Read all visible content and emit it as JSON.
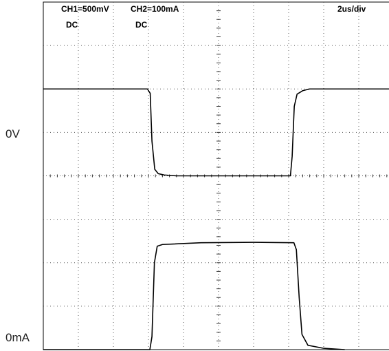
{
  "chart_data": {
    "type": "line",
    "ch1": {
      "label": "CH1=500mV",
      "coupling": "DC",
      "ref_label": "0V"
    },
    "ch2": {
      "label": "CH2=100mA",
      "coupling": "DC",
      "ref_label": "0mA"
    },
    "timebase": "2us/div",
    "grid": true,
    "x_divisions": 10,
    "y_divisions": 8,
    "series": [
      {
        "channel": "CH1",
        "color": "#000000",
        "points": [
          [
            0.0,
            6.0
          ],
          [
            2.97,
            6.0
          ],
          [
            3.05,
            5.9
          ],
          [
            3.1,
            4.8
          ],
          [
            3.18,
            4.15
          ],
          [
            3.28,
            4.05
          ],
          [
            3.45,
            4.02
          ],
          [
            3.8,
            4.0
          ],
          [
            7.05,
            4.0
          ],
          [
            7.1,
            4.45
          ],
          [
            7.16,
            5.6
          ],
          [
            7.24,
            5.88
          ],
          [
            7.4,
            5.96
          ],
          [
            7.6,
            6.0
          ],
          [
            10.0,
            6.0
          ]
        ]
      },
      {
        "channel": "CH2",
        "color": "#000000",
        "points": [
          [
            0.0,
            0.0
          ],
          [
            3.04,
            0.0
          ],
          [
            3.1,
            0.3
          ],
          [
            3.17,
            2.0
          ],
          [
            3.25,
            2.38
          ],
          [
            3.4,
            2.42
          ],
          [
            4.5,
            2.46
          ],
          [
            6.0,
            2.47
          ],
          [
            7.15,
            2.46
          ],
          [
            7.22,
            2.3
          ],
          [
            7.3,
            1.2
          ],
          [
            7.38,
            0.35
          ],
          [
            7.55,
            0.1
          ],
          [
            8.0,
            0.03
          ],
          [
            8.6,
            0.0
          ]
        ]
      }
    ]
  },
  "colors": {
    "background": "#ffffff",
    "trace": "#000000",
    "grid": "#555555"
  }
}
